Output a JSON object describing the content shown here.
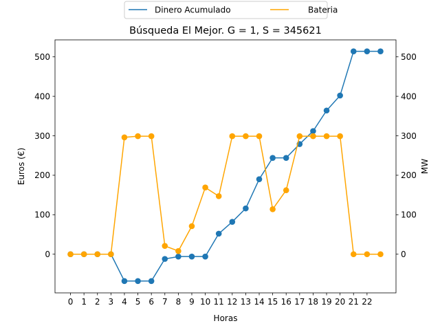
{
  "chart_data": {
    "type": "line",
    "title": "Búsqueda El Mejor. G = 1, S = 345621",
    "xlabel": "Horas",
    "ylabel_left": "Euros (€)",
    "ylabel_right": "MW",
    "x": [
      0,
      1,
      2,
      3,
      4,
      5,
      6,
      7,
      8,
      9,
      10,
      11,
      12,
      13,
      14,
      15,
      16,
      17,
      18,
      19,
      20,
      21,
      22,
      23
    ],
    "x_tick_labels": [
      "0",
      "1",
      "2",
      "3",
      "4",
      "5",
      "6",
      "7",
      "8",
      "9",
      "10",
      "11",
      "12",
      "13",
      "14",
      "15",
      "16",
      "17",
      "18",
      "19",
      "20",
      "21",
      "22"
    ],
    "xlim": [
      -1.15,
      24.15
    ],
    "ylim_left": [
      -98,
      543
    ],
    "ylim_right": [
      -98,
      543
    ],
    "y_ticks_left": [
      0,
      100,
      200,
      300,
      400,
      500
    ],
    "y_ticks_right": [
      0,
      100,
      200,
      300,
      400,
      500
    ],
    "legend_position": "top-center",
    "grid": false,
    "series": [
      {
        "name": "Dinero Acumulado",
        "color": "#1f77b4",
        "axis": "left",
        "values": [
          0,
          0,
          0,
          0,
          -68,
          -68,
          -68,
          -12,
          -6,
          -6,
          -6,
          52,
          82,
          116,
          190,
          244,
          244,
          279,
          312,
          364,
          402,
          514,
          514,
          514
        ]
      },
      {
        "name": "Bateria",
        "color": "#ffa500",
        "axis": "right",
        "values": [
          0,
          0,
          0,
          0,
          296,
          299,
          299,
          21,
          8,
          71,
          169,
          147,
          299,
          299,
          299,
          114,
          162,
          299,
          299,
          299,
          299,
          0,
          0,
          0
        ]
      }
    ]
  }
}
